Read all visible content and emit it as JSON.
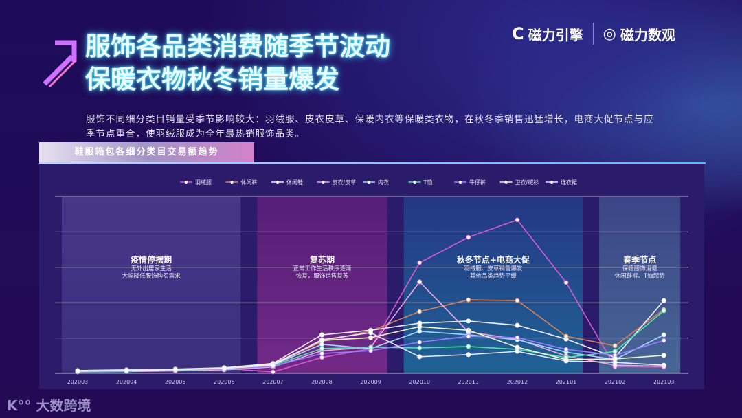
{
  "title": {
    "line1": "服饰各品类消费随季节波动",
    "line2": "保暖衣物秋冬销量爆发"
  },
  "logos": {
    "left": "磁力引擎",
    "right": "磁力数观"
  },
  "description": "服饰不同细分类目销量受季节影响较大：羽绒服、皮衣皮草、保暖内衣等保暖类衣物，在秋冬季销售迅猛增长，电商大促节点与应季节点重合，使羽绒服成为全年最热销服饰品类。",
  "panel_title": "鞋服箱包各细分类目交易额趋势",
  "watermark": "大数跨境",
  "phases": [
    {
      "title": "疫情停摆期",
      "line1": "无外出居家生活",
      "line2": "大幅降低服饰购买需求",
      "from": "202003",
      "to": "202006"
    },
    {
      "title": "复苏期",
      "line1": "正常工作生活秩序逐渐",
      "line2": "恢复，服饰销售复苏",
      "from": "202007",
      "to": "202009"
    },
    {
      "title": "秋冬节点+电商大促",
      "line1": "羽绒服、皮草销售爆发",
      "line2": "其他品类趋势平缓",
      "from": "202010",
      "to": "202101"
    },
    {
      "title": "春季节点",
      "line1": "保暖服饰消退",
      "line2": "休闲鞋裤、T恤起势",
      "from": "202102",
      "to": "202103"
    }
  ],
  "chart_data": {
    "type": "line",
    "title": "",
    "xlabel": "",
    "ylabel": "",
    "ylim": [
      0,
      5
    ],
    "grid": true,
    "legend": "top",
    "categories": [
      "202003",
      "202004",
      "202005",
      "202006",
      "202007",
      "202008",
      "202009",
      "202010",
      "202011",
      "202012",
      "202101",
      "202102",
      "202103"
    ],
    "series": [
      {
        "name": "羽绒服",
        "color": "#d65bd0",
        "values": [
          0.06,
          0.08,
          0.1,
          0.14,
          0.04,
          0.45,
          0.7,
          3.13,
          3.85,
          4.34,
          2.57,
          0.19,
          0.18
        ]
      },
      {
        "name": "休闲裤",
        "color": "#d9825a",
        "values": [
          0.05,
          0.06,
          0.08,
          0.12,
          0.25,
          0.9,
          1.2,
          1.75,
          2.08,
          2.06,
          1.05,
          0.78,
          1.81
        ]
      },
      {
        "name": "休闲鞋",
        "color": "#f4f0ff",
        "values": [
          0.08,
          0.1,
          0.12,
          0.16,
          0.28,
          1.09,
          1.22,
          1.42,
          1.48,
          1.36,
          0.97,
          0.45,
          2.06
        ]
      },
      {
        "name": "皮衣/皮草",
        "color": "#f0a6e0",
        "values": [
          0.04,
          0.05,
          0.07,
          0.1,
          0.18,
          0.64,
          0.74,
          2.59,
          1.17,
          0.97,
          0.49,
          0.23,
          0.2
        ]
      },
      {
        "name": "内衣",
        "color": "#9fd8ff",
        "values": [
          0.07,
          0.09,
          0.11,
          0.15,
          0.24,
          0.82,
          0.7,
          1.19,
          1.09,
          0.95,
          0.6,
          0.39,
          1.09
        ]
      },
      {
        "name": "T恤",
        "color": "#4fe3a8",
        "values": [
          0.05,
          0.06,
          0.09,
          0.12,
          0.22,
          0.7,
          0.74,
          0.72,
          0.76,
          0.68,
          0.45,
          0.62,
          1.77
        ]
      },
      {
        "name": "牛仔裤",
        "color": "#9a7bff",
        "values": [
          0.06,
          0.07,
          0.1,
          0.13,
          0.2,
          0.56,
          0.64,
          0.88,
          1.05,
          1.01,
          0.68,
          0.51,
          0.93
        ]
      },
      {
        "name": "卫衣/绒衫",
        "color": "#f3f5c8",
        "values": [
          0.07,
          0.08,
          0.11,
          0.15,
          0.26,
          0.93,
          1.01,
          1.32,
          1.22,
          0.74,
          0.39,
          0.41,
          0.51
        ]
      },
      {
        "name": "连衣裙",
        "color": "#e8e8ff",
        "values": [
          0.06,
          0.08,
          0.1,
          0.14,
          0.23,
          0.95,
          1.15,
          0.47,
          0.53,
          0.62,
          0.35,
          0.31,
          0.23
        ]
      }
    ]
  }
}
